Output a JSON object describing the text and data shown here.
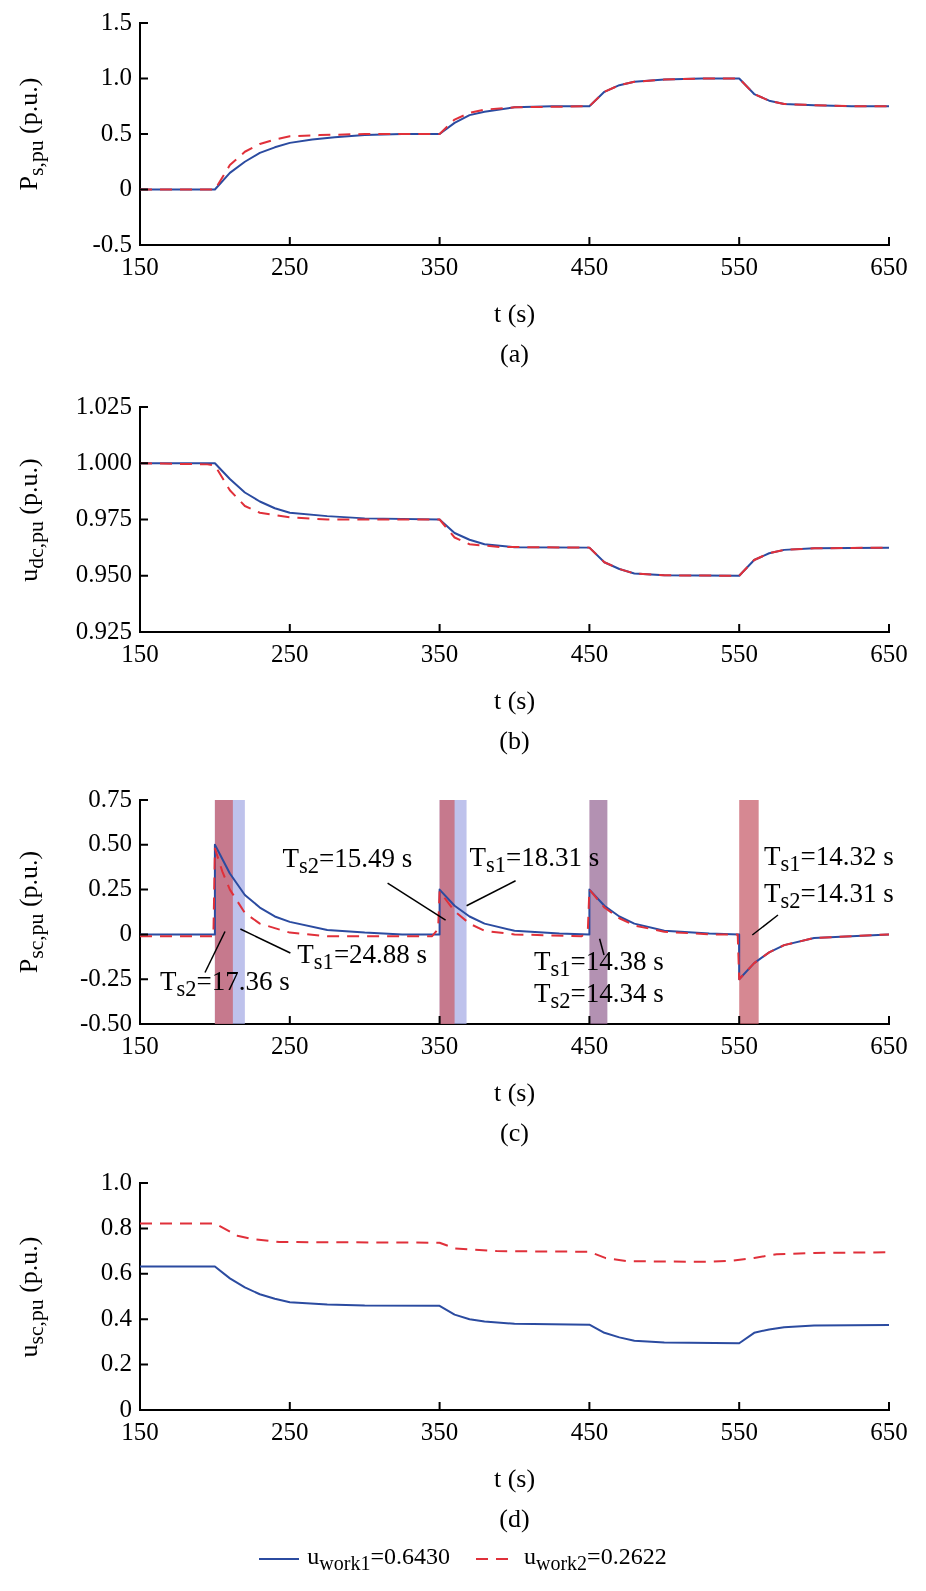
{
  "chart_data": [
    {
      "type": "line",
      "xlabel": "t (s)",
      "ylabel": "P$_{s,pu}$ (p.u.)",
      "annotations": [
        "(a)"
      ],
      "xlim": [
        150,
        650
      ],
      "xticks": [
        150,
        250,
        350,
        450,
        550,
        650
      ],
      "ylim": [
        -0.5,
        1.5
      ],
      "yticks": [
        -0.5,
        0,
        0.5,
        {
          "value": 1,
          "label": "1.0"
        },
        1.5
      ],
      "series": [
        {
          "color": "#2b4ba0",
          "line_style": "solid",
          "x": [
            150,
            200,
            210,
            220,
            230,
            240,
            250,
            265,
            280,
            300,
            325,
            350,
            360,
            370,
            380,
            400,
            425,
            450,
            460,
            470,
            480,
            500,
            525,
            550,
            560,
            570,
            580,
            600,
            625,
            650
          ],
          "values": [
            0,
            0,
            0.15,
            0.25,
            0.33,
            0.38,
            0.42,
            0.45,
            0.47,
            0.49,
            0.5,
            0.5,
            0.6,
            0.67,
            0.7,
            0.74,
            0.75,
            0.75,
            0.88,
            0.94,
            0.97,
            0.99,
            1,
            1,
            0.86,
            0.8,
            0.77,
            0.76,
            0.75,
            0.75
          ]
        },
        {
          "color": "#e0303a",
          "line_style": "dashed",
          "x": [
            150,
            200,
            210,
            220,
            230,
            240,
            250,
            270,
            300,
            350,
            360,
            370,
            380,
            400,
            450,
            460,
            470,
            480,
            500,
            525,
            550,
            560,
            570,
            580,
            600,
            625,
            650
          ],
          "values": [
            0,
            0,
            0.22,
            0.34,
            0.41,
            0.45,
            0.48,
            0.49,
            0.5,
            0.5,
            0.63,
            0.69,
            0.72,
            0.74,
            0.75,
            0.88,
            0.94,
            0.97,
            0.99,
            1,
            1,
            0.86,
            0.8,
            0.77,
            0.76,
            0.75,
            0.75
          ]
        }
      ]
    },
    {
      "type": "line",
      "xlabel": "t (s)",
      "ylabel": "u$_{dc,pu}$ (p.u.)",
      "annotations": [
        "(b)"
      ],
      "xlim": [
        150,
        650
      ],
      "xticks": [
        150,
        250,
        350,
        450,
        550,
        650
      ],
      "ylim": [
        0.925,
        1.025
      ],
      "yticks": [
        0.925,
        {
          "value": 0.95,
          "label": "0.950"
        },
        0.975,
        {
          "value": 1,
          "label": "1.000"
        },
        1.025
      ],
      "series": [
        {
          "color": "#2b4ba0",
          "line_style": "solid",
          "x": [
            150,
            200,
            210,
            220,
            230,
            240,
            250,
            275,
            300,
            350,
            360,
            370,
            380,
            400,
            450,
            460,
            470,
            480,
            500,
            550,
            560,
            570,
            580,
            600,
            650
          ],
          "values": [
            1,
            1,
            0.993,
            0.987,
            0.983,
            0.98,
            0.978,
            0.9765,
            0.9755,
            0.975,
            0.969,
            0.966,
            0.964,
            0.9627,
            0.9625,
            0.956,
            0.953,
            0.951,
            0.9502,
            0.95,
            0.957,
            0.96,
            0.9615,
            0.9622,
            0.9625
          ]
        },
        {
          "color": "#e0303a",
          "line_style": "dashed",
          "x": [
            150,
            195,
            200,
            210,
            220,
            230,
            250,
            275,
            350,
            360,
            370,
            390,
            450,
            460,
            470,
            480,
            500,
            550,
            560,
            570,
            580,
            600,
            650
          ],
          "values": [
            1,
            0.9995,
            0.999,
            0.988,
            0.981,
            0.978,
            0.976,
            0.975,
            0.975,
            0.967,
            0.964,
            0.9628,
            0.9625,
            0.956,
            0.953,
            0.951,
            0.9502,
            0.95,
            0.957,
            0.96,
            0.9615,
            0.9622,
            0.9625
          ]
        }
      ]
    },
    {
      "type": "line",
      "xlabel": "t (s)",
      "ylabel": "P$_{sc,pu}$ (p.u.)",
      "annotations": [
        "(c)",
        "T$_{s2}$=17.36 s",
        {
          "text": "T$_{s1}$=24.88 s",
          "x": 217,
          "y": 0.03
        },
        {
          "text": "T$_{s2}$=15.49 s",
          "x": 354,
          "y": 0.08
        },
        {
          "text": "T$_{s1}$=18.31 s",
          "x": 368,
          "y": 0.16
        },
        "T$_{s1}$=14.38 s",
        "T$_{s2}$=14.34 s",
        "T$_{s1}$=14.32 s",
        "T$_{s2}$=14.31 s"
      ],
      "bands": [
        {
          "axis": "x",
          "from": 200,
          "to": 220,
          "color": "#a8aee6"
        },
        {
          "axis": "x",
          "from": 200,
          "to": 212,
          "color": "#c8606e"
        },
        {
          "axis": "x",
          "from": 350,
          "to": 368,
          "color": "#a8aee6"
        },
        {
          "axis": "x",
          "from": 350,
          "to": 360,
          "color": "#c8606e"
        },
        {
          "axis": "x",
          "from": 450,
          "to": 462,
          "color": "#9a6c98"
        },
        {
          "axis": "x",
          "from": 550,
          "to": 563,
          "color": "#c8606e"
        }
      ],
      "xlim": [
        150,
        650
      ],
      "xticks": [
        150,
        250,
        350,
        450,
        550,
        650
      ],
      "ylim": [
        -0.5,
        0.75
      ],
      "yticks": [
        {
          "value": -0.5,
          "label": "-0.50"
        },
        -0.25,
        0,
        0.25,
        {
          "value": 0.5,
          "label": "0.50"
        },
        0.75
      ],
      "series": [
        {
          "color": "#2b4ba0",
          "line_style": "solid",
          "x": [
            150,
            199.9,
            200,
            210,
            220,
            230,
            240,
            250,
            275,
            300,
            325,
            349.9,
            350,
            360,
            370,
            380,
            400,
            430,
            449.9,
            450,
            460,
            470,
            480,
            500,
            530,
            549.9,
            550,
            560,
            570,
            580,
            600,
            650
          ],
          "values": [
            0,
            0,
            0.5,
            0.34,
            0.22,
            0.15,
            0.1,
            0.07,
            0.025,
            0.01,
            0,
            0,
            0.25,
            0.16,
            0.1,
            0.06,
            0.02,
            0.005,
            0,
            0.25,
            0.16,
            0.1,
            0.06,
            0.02,
            0.005,
            0,
            -0.25,
            -0.16,
            -0.1,
            -0.06,
            -0.02,
            0
          ]
        },
        {
          "color": "#e0303a",
          "line_style": "dashed",
          "x": [
            150,
            199,
            200,
            205,
            210,
            220,
            230,
            250,
            275,
            300,
            345,
            349,
            350,
            360,
            370,
            380,
            400,
            445,
            449,
            450,
            460,
            470,
            480,
            500,
            530,
            549,
            550,
            560,
            570,
            580,
            600,
            650
          ],
          "values": [
            -0.01,
            -0.01,
            0.48,
            0.35,
            0.25,
            0.12,
            0.06,
            0.01,
            -0.01,
            -0.01,
            -0.01,
            0.03,
            0.24,
            0.13,
            0.06,
            0.02,
            0,
            -0.01,
            0.03,
            0.25,
            0.15,
            0.09,
            0.05,
            0.015,
            0,
            0,
            -0.25,
            -0.16,
            -0.1,
            -0.06,
            -0.02,
            0
          ]
        }
      ]
    },
    {
      "type": "line",
      "xlabel": "t (s)",
      "ylabel": "u$_{sc,pu}$ (p.u.)",
      "annotations": [
        "(d)"
      ],
      "legend": "bottom",
      "xlim": [
        150,
        650
      ],
      "xticks": [
        150,
        250,
        350,
        450,
        550,
        650
      ],
      "ylim": [
        0,
        1
      ],
      "yticks": [
        0,
        0.2,
        0.4,
        0.6,
        0.8,
        {
          "value": 1,
          "label": "1.0"
        }
      ],
      "series": [
        {
          "name": "u$_{work1}$=0.6430",
          "color": "#2b4ba0",
          "line_style": "solid",
          "x": [
            150,
            200,
            210,
            220,
            230,
            240,
            250,
            275,
            300,
            350,
            360,
            370,
            380,
            400,
            450,
            460,
            470,
            480,
            500,
            550,
            560,
            570,
            580,
            600,
            650
          ],
          "values": [
            0.632,
            0.632,
            0.58,
            0.54,
            0.51,
            0.49,
            0.475,
            0.465,
            0.46,
            0.459,
            0.42,
            0.4,
            0.39,
            0.38,
            0.376,
            0.34,
            0.32,
            0.305,
            0.297,
            0.294,
            0.34,
            0.355,
            0.365,
            0.372,
            0.375
          ]
        },
        {
          "name": "u$_{work2}$=0.2622",
          "color": "#e0303a",
          "line_style": "dashed",
          "x": [
            150,
            200,
            215,
            225,
            243,
            350,
            360,
            388,
            450,
            461,
            475,
            500,
            530,
            545,
            560,
            575,
            600,
            650
          ],
          "values": [
            0.822,
            0.822,
            0.768,
            0.753,
            0.74,
            0.737,
            0.712,
            0.7,
            0.697,
            0.669,
            0.656,
            0.654,
            0.653,
            0.658,
            0.67,
            0.686,
            0.692,
            0.695
          ]
        }
      ]
    }
  ]
}
